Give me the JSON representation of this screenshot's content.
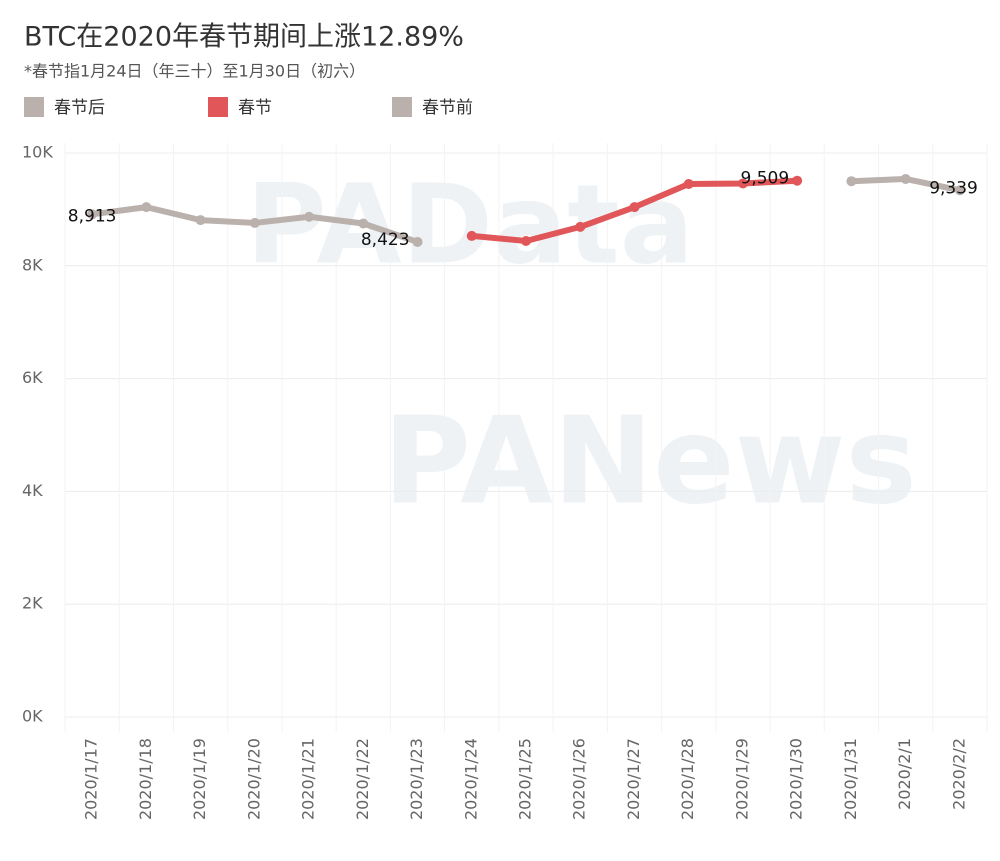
{
  "chart_data": {
    "type": "line",
    "title": "BTC在2020年春节期间上涨12.89%",
    "subtitle": "*春节指1月24日（年三十）至1月30日（初六）",
    "watermarks": [
      "PAData",
      "PANews"
    ],
    "categories": [
      "2020/1/17",
      "2020/1/18",
      "2020/1/19",
      "2020/1/20",
      "2020/1/21",
      "2020/1/22",
      "2020/1/23",
      "2020/1/24",
      "2020/1/25",
      "2020/1/26",
      "2020/1/27",
      "2020/1/28",
      "2020/1/29",
      "2020/1/30",
      "2020/1/31",
      "2020/2/1",
      "2020/2/2"
    ],
    "legend_order": [
      2,
      1,
      0
    ],
    "series": [
      {
        "name": "春节前",
        "color": "#bab0ac",
        "values": [
          8913,
          9040,
          8810,
          8760,
          8870,
          8750,
          8423,
          null,
          null,
          null,
          null,
          null,
          null,
          null,
          null,
          null,
          null
        ],
        "value_labels": [
          "8,913",
          null,
          null,
          null,
          null,
          null,
          "8,423",
          null,
          null,
          null,
          null,
          null,
          null,
          null,
          null,
          null,
          null
        ]
      },
      {
        "name": "春节",
        "color": "#e15759",
        "values": [
          null,
          null,
          null,
          null,
          null,
          null,
          null,
          8530,
          8440,
          8690,
          9040,
          9450,
          9460,
          9509,
          null,
          null,
          null
        ],
        "value_labels": [
          null,
          null,
          null,
          null,
          null,
          null,
          null,
          null,
          null,
          null,
          null,
          null,
          null,
          "9,509",
          null,
          null,
          null
        ]
      },
      {
        "name": "春节后",
        "color": "#bab0ac",
        "values": [
          null,
          null,
          null,
          null,
          null,
          null,
          null,
          null,
          null,
          null,
          null,
          null,
          null,
          null,
          9500,
          9540,
          9339
        ],
        "value_labels": [
          null,
          null,
          null,
          null,
          null,
          null,
          null,
          null,
          null,
          null,
          null,
          null,
          null,
          null,
          null,
          null,
          "9,339"
        ]
      }
    ],
    "ylim": [
      0,
      10000
    ],
    "yticks": [
      {
        "value": 0,
        "label": "0K"
      },
      {
        "value": 2000,
        "label": "2K"
      },
      {
        "value": 4000,
        "label": "4K"
      },
      {
        "value": 6000,
        "label": "6K"
      },
      {
        "value": 8000,
        "label": "8K"
      },
      {
        "value": 10000,
        "label": "10K"
      }
    ],
    "grid": true
  }
}
